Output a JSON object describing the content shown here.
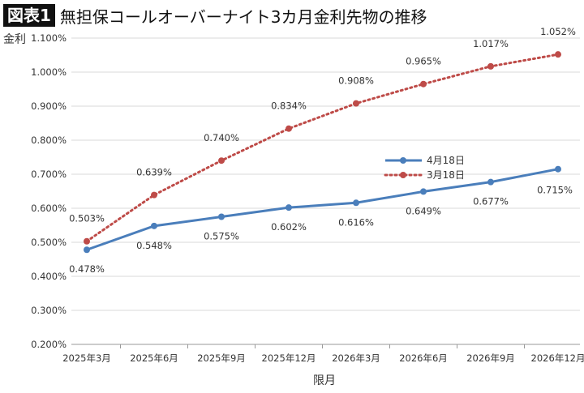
{
  "badge": "図表1",
  "title": "無担保コールオーバーナイト3カ月金利先物の推移",
  "chart_data": {
    "type": "line",
    "ylabel": "金利",
    "xlabel": "限月",
    "categories": [
      "2025年3月",
      "2025年6月",
      "2025年9月",
      "2025年12月",
      "2026年3月",
      "2026年6月",
      "2026年9月",
      "2026年12月"
    ],
    "ylim": [
      0.2,
      1.1
    ],
    "yticks": [
      "0.200%",
      "0.300%",
      "0.400%",
      "0.500%",
      "0.600%",
      "0.700%",
      "0.800%",
      "0.900%",
      "1.000%",
      "1.100%"
    ],
    "grid": true,
    "legend_position": "center-right",
    "series": [
      {
        "name": "4月18日",
        "color": "#4a7ebb",
        "style": "solid",
        "values": [
          0.478,
          0.548,
          0.575,
          0.602,
          0.616,
          0.649,
          0.677,
          0.715
        ],
        "labels": [
          "0.478%",
          "0.548%",
          "0.575%",
          "0.602%",
          "0.616%",
          "0.649%",
          "0.677%",
          "0.715%"
        ]
      },
      {
        "name": "3月18日",
        "color": "#be4b48",
        "style": "dotted",
        "values": [
          0.503,
          0.639,
          0.74,
          0.834,
          0.908,
          0.965,
          1.017,
          1.052
        ],
        "labels": [
          "0.503%",
          "0.639%",
          "0.740%",
          "0.834%",
          "0.908%",
          "0.965%",
          "1.017%",
          "1.052%"
        ]
      }
    ]
  }
}
